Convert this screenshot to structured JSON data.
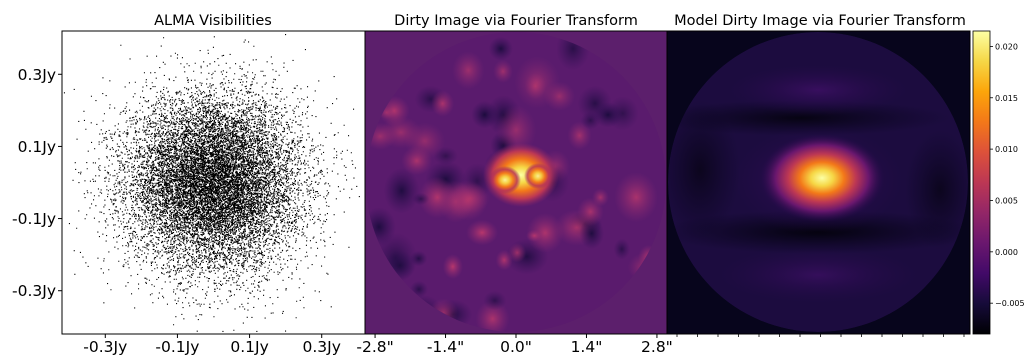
{
  "chart_data": [
    {
      "type": "scatter",
      "title": "ALMA Visibilities",
      "xlabel": "",
      "ylabel": "",
      "xlim": [
        -0.42,
        0.42
      ],
      "ylim": [
        -0.42,
        0.42
      ],
      "x_ticks": [
        -0.3,
        -0.1,
        0.1,
        0.3
      ],
      "x_tick_labels": [
        "-0.3Jy",
        "-0.1Jy",
        "0.1Jy",
        "0.3Jy"
      ],
      "y_ticks": [
        0.3,
        0.1,
        -0.1,
        -0.3
      ],
      "y_tick_labels": [
        "0.3Jy",
        "0.1Jy",
        "-0.1Jy",
        "-0.3Jy"
      ],
      "point_color": "#000000",
      "distribution": {
        "shape": "gaussian",
        "center": [
          0.0,
          0.0
        ],
        "std": [
          0.12,
          0.12
        ],
        "n_points": 14000
      }
    },
    {
      "type": "heatmap",
      "title": "Dirty Image via Fourier Transform",
      "xlabel": "",
      "ylabel": "",
      "xlim": [
        -3.0,
        3.0
      ],
      "x_ticks": [
        -2.8,
        -1.4,
        0.0,
        1.4,
        2.8
      ],
      "x_tick_labels": [
        "-2.8\"",
        "-1.4\"",
        "0.0\"",
        "1.4\"",
        "2.8\""
      ],
      "colormap": "inferno",
      "aperture": "circular",
      "background_color": "#5c1f6c",
      "peak": {
        "x": 0.1,
        "y": 0.15,
        "value": 0.02
      }
    },
    {
      "type": "heatmap",
      "title": "Model Dirty Image via Fourier Transform",
      "xlabel": "",
      "ylabel": "",
      "colormap": "inferno",
      "aperture": "circular",
      "background_color": "#07051c",
      "peak": {
        "x": 0.05,
        "y": 0.0,
        "value": 0.021
      }
    }
  ],
  "colorbar": {
    "colormap": "inferno",
    "vmin": -0.008,
    "vmax": 0.0215,
    "ticks": [
      0.02,
      0.015,
      0.01,
      0.005,
      0.0,
      -0.005
    ],
    "tick_labels": [
      "0.020",
      "0.015",
      "0.010",
      "0.005",
      "0.000",
      "−0.005"
    ]
  },
  "colors": {
    "axes": "#000000",
    "scatter_points": "#000000"
  }
}
